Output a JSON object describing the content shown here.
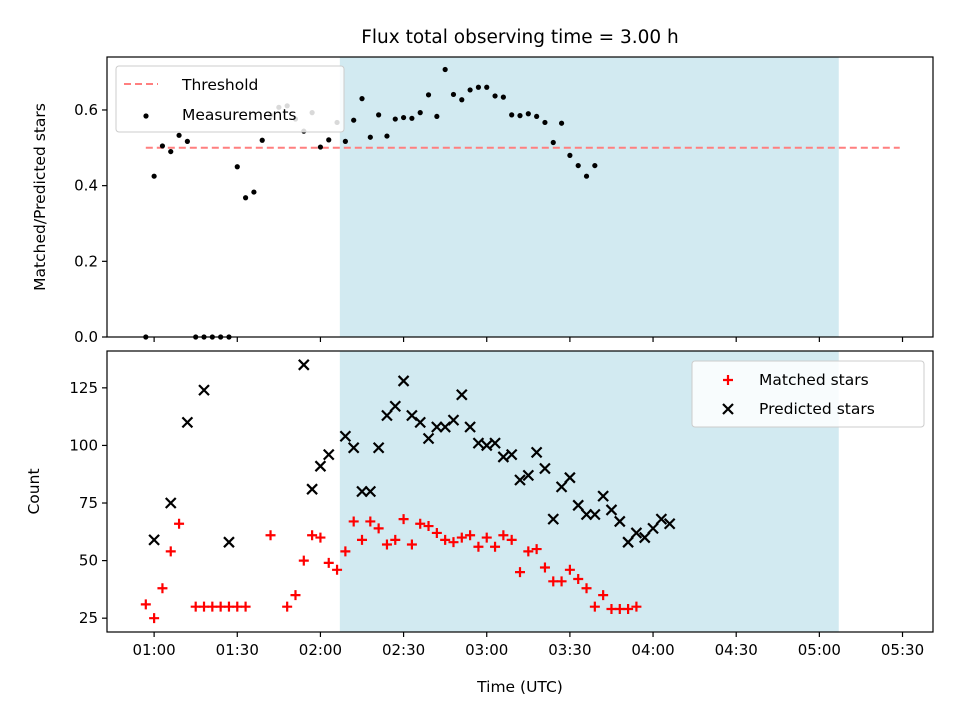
{
  "figure": {
    "title": "Flux total observing time = 3.00 h",
    "xlabel": "Time (UTC)"
  },
  "chart_data": [
    {
      "type": "scatter",
      "panel": "top",
      "ylabel": "Matched/Predicted stars",
      "xlim": [
        "00:43",
        "05:41"
      ],
      "ylim": [
        0,
        0.74
      ],
      "xticks": [
        "01:00",
        "01:30",
        "02:00",
        "02:30",
        "03:00",
        "03:30",
        "04:00",
        "04:30",
        "05:00",
        "05:30"
      ],
      "yticks": [
        0.0,
        0.2,
        0.4,
        0.6
      ],
      "grid": false,
      "legend": "upper left",
      "shaded_interval": {
        "from": "02:07",
        "to": "05:07",
        "color": "#add8e6"
      },
      "threshold": {
        "name": "Threshold",
        "value": 0.5,
        "from": "00:57",
        "to": "05:29",
        "color": "#ff7f7f"
      },
      "series": [
        {
          "name": "Measurements",
          "color": "#000000",
          "marker": "dot",
          "points": [
            [
              "00:57",
              0.0
            ],
            [
              "01:00",
              0.425
            ],
            [
              "01:03",
              0.505
            ],
            [
              "01:06",
              0.49
            ],
            [
              "01:09",
              0.533
            ],
            [
              "01:12",
              0.517
            ],
            [
              "01:15",
              0.0
            ],
            [
              "01:18",
              0.0
            ],
            [
              "01:21",
              0.0
            ],
            [
              "01:24",
              0.0
            ],
            [
              "01:27",
              0.0
            ],
            [
              "01:30",
              0.45
            ],
            [
              "01:33",
              0.368
            ],
            [
              "01:36",
              0.383
            ],
            [
              "01:39",
              0.52
            ],
            [
              "01:42",
              0.586
            ],
            [
              "01:45",
              0.607
            ],
            [
              "01:48",
              0.611
            ],
            [
              "01:51",
              0.576
            ],
            [
              "01:54",
              0.544
            ],
            [
              "01:57",
              0.593
            ],
            [
              "02:00",
              0.502
            ],
            [
              "02:03",
              0.521
            ],
            [
              "02:06",
              0.567
            ],
            [
              "02:09",
              0.517
            ],
            [
              "02:12",
              0.573
            ],
            [
              "02:15",
              0.63
            ],
            [
              "02:18",
              0.528
            ],
            [
              "02:21",
              0.587
            ],
            [
              "02:24",
              0.531
            ],
            [
              "02:27",
              0.576
            ],
            [
              "02:30",
              0.58
            ],
            [
              "02:33",
              0.578
            ],
            [
              "02:36",
              0.593
            ],
            [
              "02:39",
              0.64
            ],
            [
              "02:42",
              0.583
            ],
            [
              "02:45",
              0.707
            ],
            [
              "02:48",
              0.641
            ],
            [
              "02:51",
              0.627
            ],
            [
              "02:54",
              0.653
            ],
            [
              "02:57",
              0.66
            ],
            [
              "03:00",
              0.66
            ],
            [
              "03:03",
              0.637
            ],
            [
              "03:06",
              0.634
            ],
            [
              "03:09",
              0.587
            ],
            [
              "03:12",
              0.585
            ],
            [
              "03:15",
              0.59
            ],
            [
              "03:18",
              0.583
            ],
            [
              "03:21",
              0.567
            ],
            [
              "03:24",
              0.514
            ],
            [
              "03:27",
              0.565
            ],
            [
              "03:30",
              0.48
            ],
            [
              "03:33",
              0.453
            ],
            [
              "03:36",
              0.425
            ],
            [
              "03:39",
              0.453
            ]
          ]
        }
      ]
    },
    {
      "type": "scatter",
      "panel": "bottom",
      "ylabel": "Count",
      "xlim": [
        "00:43",
        "05:41"
      ],
      "ylim": [
        19,
        141
      ],
      "xticks": [
        "01:00",
        "01:30",
        "02:00",
        "02:30",
        "03:00",
        "03:30",
        "04:00",
        "04:30",
        "05:00",
        "05:30"
      ],
      "yticks": [
        25,
        50,
        75,
        100,
        125
      ],
      "grid": false,
      "legend": "upper right",
      "shaded_interval": {
        "from": "02:07",
        "to": "05:07",
        "color": "#add8e6"
      },
      "series": [
        {
          "name": "Matched stars",
          "color": "#ff0000",
          "marker": "plus",
          "values": [
            31,
            25,
            38,
            54,
            66,
            30,
            30,
            30,
            30,
            30,
            30,
            30,
            61,
            30,
            35,
            50,
            61,
            60,
            49,
            46,
            54,
            67,
            59,
            67,
            64,
            57,
            59,
            68,
            57,
            66,
            65,
            62,
            59,
            58,
            60,
            61,
            56,
            60,
            56,
            61,
            59,
            45,
            54,
            55,
            47,
            41,
            41,
            46,
            42,
            38,
            30,
            35,
            29,
            29,
            29,
            30
          ]
        },
        {
          "name": "Predicted stars",
          "color": "#000000",
          "marker": "x",
          "values": [
            59,
            75,
            110,
            124,
            58,
            135,
            81,
            91,
            96,
            104,
            99,
            80,
            80,
            99,
            113,
            117,
            128,
            113,
            110,
            103,
            108,
            108,
            111,
            122,
            108,
            101,
            100,
            101,
            95,
            96,
            85,
            87,
            97,
            90,
            68,
            82,
            86,
            74,
            70,
            70,
            78,
            72,
            67,
            58,
            62,
            60,
            64,
            68,
            66
          ]
        }
      ],
      "matched_x": [
        "00:57",
        "01:00",
        "01:03",
        "01:06",
        "01:09",
        "01:15",
        "01:18",
        "01:21",
        "01:24",
        "01:27",
        "01:30",
        "01:33",
        "01:42",
        "01:48",
        "01:51",
        "01:54",
        "01:57",
        "02:00",
        "02:03",
        "02:06",
        "02:09",
        "02:12",
        "02:15",
        "02:18",
        "02:21",
        "02:24",
        "02:27",
        "02:30",
        "02:33",
        "02:36",
        "02:39",
        "02:42",
        "02:45",
        "02:48",
        "02:51",
        "02:54",
        "02:57",
        "03:00",
        "03:03",
        "03:06",
        "03:09",
        "03:12",
        "03:15",
        "03:18",
        "03:21",
        "03:24",
        "03:27",
        "03:30",
        "03:33",
        "03:36",
        "03:39",
        "03:42",
        "03:45",
        "03:48",
        "03:51",
        "03:54"
      ],
      "predicted_x": [
        "01:00",
        "01:06",
        "01:12",
        "01:18",
        "01:27",
        "01:54",
        "01:57",
        "02:00",
        "02:03",
        "02:09",
        "02:12",
        "02:15",
        "02:18",
        "02:21",
        "02:24",
        "02:27",
        "02:30",
        "02:33",
        "02:36",
        "02:39",
        "02:42",
        "02:45",
        "02:48",
        "02:51",
        "02:54",
        "02:57",
        "03:00",
        "03:03",
        "03:06",
        "03:09",
        "03:12",
        "03:15",
        "03:18",
        "03:21",
        "03:24",
        "03:27",
        "03:30",
        "03:33",
        "03:36",
        "03:39",
        "03:42",
        "03:45",
        "03:48",
        "03:51",
        "03:54",
        "03:57",
        "04:00",
        "04:03",
        "04:06"
      ]
    }
  ]
}
